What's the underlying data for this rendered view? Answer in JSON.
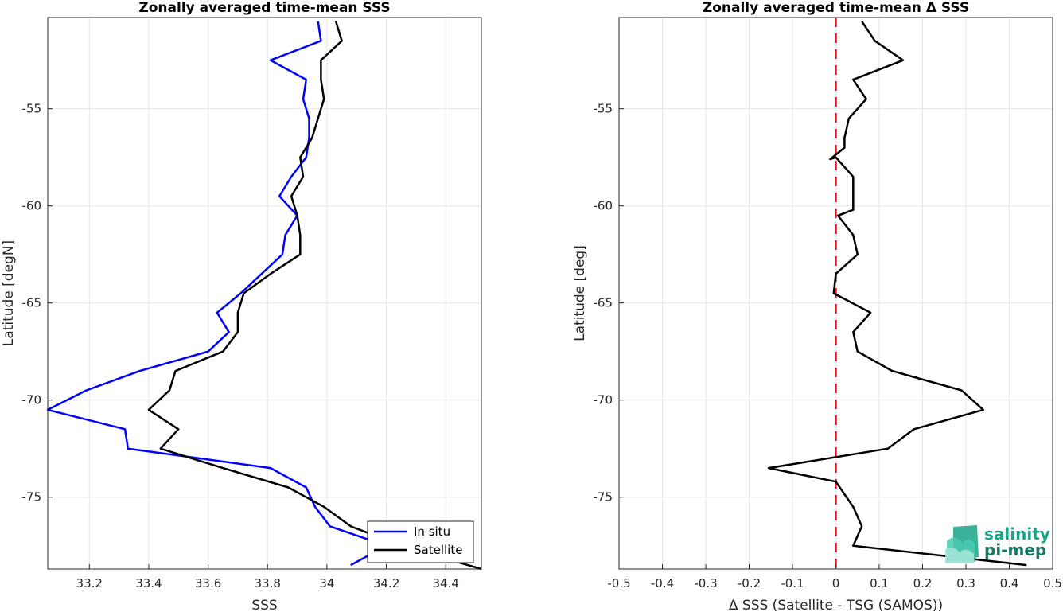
{
  "chart_data": [
    {
      "type": "line",
      "title": "Zonally averaged time-mean SSS",
      "xlabel": "SSS",
      "ylabel": "Latitude [degN]",
      "xlim": [
        33.06,
        34.52
      ],
      "ylim": [
        -78.7,
        -50.3
      ],
      "xticks": [
        33.2,
        33.4,
        33.6,
        33.8,
        34,
        34.2,
        34.4
      ],
      "xtick_labels": [
        "33.2",
        "33.4",
        "33.6",
        "33.8",
        "34",
        "34.2",
        "34.4"
      ],
      "yticks": [
        -55,
        -60,
        -65,
        -70,
        -75
      ],
      "ytick_labels": [
        "-55",
        "-60",
        "-65",
        "-70",
        "-75"
      ],
      "grid": true,
      "legend_position": "bottom-right",
      "series": [
        {
          "name": "In situ",
          "color": "#0000ff",
          "points": [
            [
              33.97,
              -50.5
            ],
            [
              33.98,
              -51.5
            ],
            [
              33.81,
              -52.5
            ],
            [
              33.93,
              -53.5
            ],
            [
              33.92,
              -54.5
            ],
            [
              33.94,
              -55.5
            ],
            [
              33.94,
              -56.5
            ],
            [
              33.93,
              -57.5
            ],
            [
              33.88,
              -58.5
            ],
            [
              33.84,
              -59.5
            ],
            [
              33.9,
              -60.5
            ],
            [
              33.86,
              -61.5
            ],
            [
              33.85,
              -62.5
            ],
            [
              33.78,
              -63.5
            ],
            [
              33.71,
              -64.5
            ],
            [
              33.63,
              -65.5
            ],
            [
              33.67,
              -66.5
            ],
            [
              33.6,
              -67.5
            ],
            [
              33.37,
              -68.5
            ],
            [
              33.19,
              -69.5
            ],
            [
              33.06,
              -70.5
            ],
            [
              33.32,
              -71.5
            ],
            [
              33.33,
              -72.5
            ],
            [
              33.81,
              -73.5
            ],
            [
              33.93,
              -74.5
            ],
            [
              33.96,
              -75.5
            ],
            [
              34.01,
              -76.5
            ],
            [
              34.2,
              -77.5
            ],
            [
              34.08,
              -78.5
            ]
          ]
        },
        {
          "name": "Satellite",
          "color": "#000000",
          "points": [
            [
              34.03,
              -50.5
            ],
            [
              34.05,
              -51.5
            ],
            [
              33.98,
              -52.5
            ],
            [
              33.98,
              -53.5
            ],
            [
              33.99,
              -54.5
            ],
            [
              33.97,
              -55.5
            ],
            [
              33.95,
              -56.5
            ],
            [
              33.91,
              -57.5
            ],
            [
              33.92,
              -58.5
            ],
            [
              33.88,
              -59.5
            ],
            [
              33.9,
              -60.5
            ],
            [
              33.91,
              -61.5
            ],
            [
              33.91,
              -62.5
            ],
            [
              33.81,
              -63.5
            ],
            [
              33.72,
              -64.5
            ],
            [
              33.7,
              -65.5
            ],
            [
              33.7,
              -66.5
            ],
            [
              33.65,
              -67.5
            ],
            [
              33.49,
              -68.5
            ],
            [
              33.47,
              -69.5
            ],
            [
              33.4,
              -70.5
            ],
            [
              33.5,
              -71.5
            ],
            [
              33.44,
              -72.5
            ],
            [
              33.65,
              -73.5
            ],
            [
              33.87,
              -74.5
            ],
            [
              33.99,
              -75.5
            ],
            [
              34.08,
              -76.5
            ],
            [
              34.25,
              -77.5
            ],
            [
              34.52,
              -78.7
            ]
          ]
        }
      ]
    },
    {
      "type": "line",
      "title": "Zonally averaged time-mean Δ SSS",
      "xlabel": "Δ SSS (Satellite - TSG (SAMOS))",
      "ylabel": "Latitude [deg]",
      "xlim": [
        -0.5,
        0.5
      ],
      "ylim": [
        -78.7,
        -50.3
      ],
      "xticks": [
        -0.5,
        -0.4,
        -0.3,
        -0.2,
        -0.1,
        0,
        0.1,
        0.2,
        0.3,
        0.4,
        0.5
      ],
      "xtick_labels": [
        "-0.5",
        "-0.4",
        "-0.3",
        "-0.2",
        "-0.1",
        "0",
        "0.1",
        "0.2",
        "0.3",
        "0.4",
        "0.5"
      ],
      "yticks": [
        -55,
        -60,
        -65,
        -70,
        -75
      ],
      "ytick_labels": [
        "-55",
        "-60",
        "-65",
        "-70",
        "-75"
      ],
      "grid": true,
      "reference_line": {
        "x": 0,
        "color": "#e8161b",
        "style": "dashed"
      },
      "series": [
        {
          "color": "#000000",
          "points": [
            [
              0.06,
              -50.5
            ],
            [
              0.09,
              -51.5
            ],
            [
              0.155,
              -52.5
            ],
            [
              0.04,
              -53.5
            ],
            [
              0.07,
              -54.5
            ],
            [
              0.03,
              -55.5
            ],
            [
              0.02,
              -56.5
            ],
            [
              0.02,
              -57.0
            ],
            [
              -0.013,
              -57.6
            ],
            [
              0.0,
              -57.5
            ],
            [
              0.04,
              -58.5
            ],
            [
              0.04,
              -59.5
            ],
            [
              0.04,
              -60.2
            ],
            [
              0.005,
              -60.5
            ],
            [
              0.04,
              -61.5
            ],
            [
              0.05,
              -62.5
            ],
            [
              0.0,
              -63.5
            ],
            [
              -0.005,
              -64.5
            ],
            [
              0.08,
              -65.5
            ],
            [
              0.04,
              -66.5
            ],
            [
              0.05,
              -67.5
            ],
            [
              0.13,
              -68.5
            ],
            [
              0.29,
              -69.5
            ],
            [
              0.34,
              -70.5
            ],
            [
              0.18,
              -71.5
            ],
            [
              0.12,
              -72.5
            ],
            [
              -0.155,
              -73.5
            ],
            [
              0.0,
              -74.2
            ],
            [
              0.04,
              -75.5
            ],
            [
              0.06,
              -76.5
            ],
            [
              0.04,
              -77.5
            ],
            [
              0.44,
              -78.5
            ]
          ]
        }
      ]
    }
  ],
  "logo": {
    "line1": "salinity",
    "line2": "pi-mep",
    "color": "#17a589"
  }
}
